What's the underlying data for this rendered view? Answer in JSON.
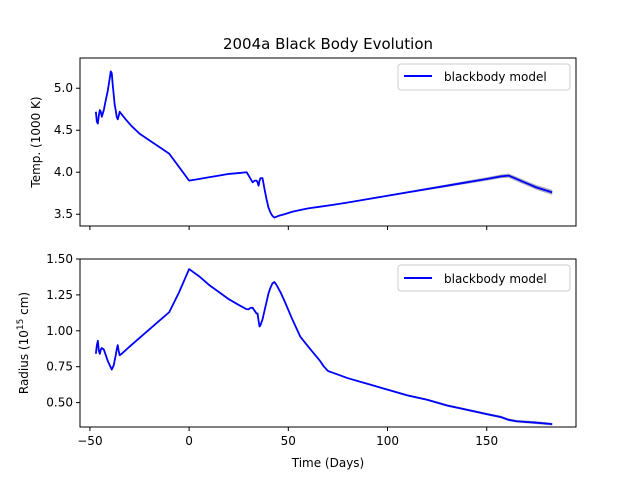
{
  "colors": {
    "line": "#0000ff",
    "band": "#9999aa",
    "axes": "#000000",
    "legend_border": "#cccccc",
    "background": "#ffffff"
  },
  "chart_data": [
    {
      "type": "line",
      "title": "2004a Black Body Evolution",
      "xlabel": "",
      "ylabel": "Temp. (1000 K)",
      "xlim": [
        -55,
        195
      ],
      "ylim": [
        3.36,
        5.36
      ],
      "yticks": [
        "3.5",
        "4.0",
        "4.5",
        "5.0"
      ],
      "xticks": [],
      "legend_position": "upper right",
      "series": [
        {
          "name": "blackbody model",
          "x": [
            -47,
            -46.5,
            -46,
            -45.5,
            -45,
            -44.5,
            -44,
            -43,
            -42,
            -41,
            -40,
            -39.5,
            -39,
            -38.5,
            -38,
            -37.5,
            -37,
            -36.5,
            -36,
            -35.5,
            -35,
            -34,
            -32,
            -29,
            -25,
            -20,
            -15,
            -10,
            -5,
            0,
            5,
            10,
            15,
            20,
            25,
            29,
            30,
            31,
            32,
            33,
            34,
            34.5,
            35,
            35.5,
            36,
            37,
            38,
            39,
            40,
            41,
            42,
            43,
            45,
            48,
            52,
            56,
            60,
            66,
            72,
            80,
            90,
            100,
            110,
            120,
            130,
            140,
            150,
            157,
            161,
            165,
            170,
            175,
            183
          ],
          "y": [
            4.72,
            4.6,
            4.58,
            4.68,
            4.74,
            4.72,
            4.66,
            4.74,
            4.86,
            4.97,
            5.12,
            5.2,
            5.18,
            5.04,
            4.92,
            4.8,
            4.74,
            4.66,
            4.63,
            4.67,
            4.72,
            4.69,
            4.63,
            4.55,
            4.46,
            4.38,
            4.3,
            4.22,
            4.06,
            3.9,
            3.92,
            3.94,
            3.96,
            3.98,
            3.99,
            4.0,
            3.96,
            3.92,
            3.88,
            3.9,
            3.9,
            3.88,
            3.84,
            3.9,
            3.93,
            3.93,
            3.8,
            3.68,
            3.58,
            3.52,
            3.48,
            3.46,
            3.48,
            3.5,
            3.53,
            3.55,
            3.57,
            3.59,
            3.61,
            3.64,
            3.68,
            3.72,
            3.76,
            3.8,
            3.84,
            3.88,
            3.92,
            3.95,
            3.96,
            3.92,
            3.87,
            3.82,
            3.76
          ],
          "band_halfwidth": [
            0,
            0,
            0,
            0,
            0,
            0,
            0,
            0,
            0,
            0,
            0,
            0,
            0,
            0,
            0,
            0,
            0,
            0,
            0,
            0,
            0,
            0,
            0,
            0,
            0,
            0,
            0,
            0,
            0,
            0,
            0,
            0,
            0,
            0,
            0,
            0,
            0,
            0,
            0,
            0,
            0,
            0,
            0,
            0,
            0,
            0,
            0,
            0,
            0,
            0,
            0,
            0,
            0,
            0,
            0,
            0,
            0,
            0,
            0.004,
            0.006,
            0.008,
            0.01,
            0.012,
            0.014,
            0.016,
            0.018,
            0.02,
            0.022,
            0.024,
            0.026,
            0.026,
            0.028,
            0.03
          ]
        }
      ]
    },
    {
      "type": "line",
      "title": "",
      "xlabel": "Time (Days)",
      "ylabel": "Radius (10^15 cm)",
      "xlim": [
        -55,
        195
      ],
      "ylim": [
        0.33,
        1.5
      ],
      "yticks": [
        "0.50",
        "0.75",
        "1.00",
        "1.25",
        "1.50"
      ],
      "xticks": [
        "−50",
        "0",
        "50",
        "100",
        "150"
      ],
      "legend_position": "upper right",
      "series": [
        {
          "name": "blackbody model",
          "x": [
            -47,
            -46.5,
            -46,
            -45.5,
            -45,
            -44.5,
            -44,
            -43,
            -42,
            -41,
            -40,
            -39,
            -38,
            -37,
            -36.5,
            -36,
            -35.5,
            -35,
            -34,
            -30,
            -25,
            -20,
            -15,
            -10,
            -5,
            0,
            5,
            10,
            15,
            20,
            25,
            29,
            30,
            31,
            32,
            33,
            34,
            34.5,
            35,
            35.5,
            36,
            37,
            38,
            39,
            40,
            41,
            42,
            43,
            44,
            46,
            48,
            52,
            56,
            60,
            66,
            68,
            70,
            72,
            80,
            90,
            100,
            110,
            120,
            130,
            140,
            150,
            157,
            161,
            165,
            175,
            183
          ],
          "y": [
            0.84,
            0.9,
            0.93,
            0.86,
            0.84,
            0.87,
            0.88,
            0.87,
            0.83,
            0.79,
            0.76,
            0.73,
            0.76,
            0.83,
            0.87,
            0.9,
            0.86,
            0.83,
            0.84,
            0.89,
            0.95,
            1.01,
            1.07,
            1.13,
            1.27,
            1.43,
            1.38,
            1.32,
            1.27,
            1.22,
            1.18,
            1.15,
            1.15,
            1.16,
            1.16,
            1.14,
            1.12,
            1.12,
            1.07,
            1.03,
            1.04,
            1.08,
            1.14,
            1.2,
            1.26,
            1.3,
            1.33,
            1.34,
            1.32,
            1.27,
            1.21,
            1.08,
            0.96,
            0.89,
            0.79,
            0.75,
            0.72,
            0.71,
            0.67,
            0.63,
            0.59,
            0.55,
            0.52,
            0.48,
            0.45,
            0.42,
            0.4,
            0.38,
            0.37,
            0.36,
            0.35
          ],
          "band_halfwidth": [
            0,
            0,
            0,
            0,
            0,
            0,
            0,
            0,
            0,
            0,
            0,
            0,
            0,
            0,
            0,
            0,
            0,
            0,
            0,
            0,
            0,
            0,
            0,
            0,
            0,
            0,
            0,
            0,
            0,
            0,
            0,
            0,
            0,
            0,
            0,
            0,
            0,
            0,
            0,
            0,
            0,
            0,
            0,
            0,
            0,
            0,
            0,
            0,
            0,
            0,
            0,
            0,
            0,
            0,
            0,
            0,
            0,
            0.004,
            0.005,
            0.006,
            0.006,
            0.007,
            0.007,
            0.008,
            0.008,
            0.008,
            0.009,
            0.009,
            0.009,
            0.01,
            0.01
          ]
        }
      ]
    }
  ]
}
